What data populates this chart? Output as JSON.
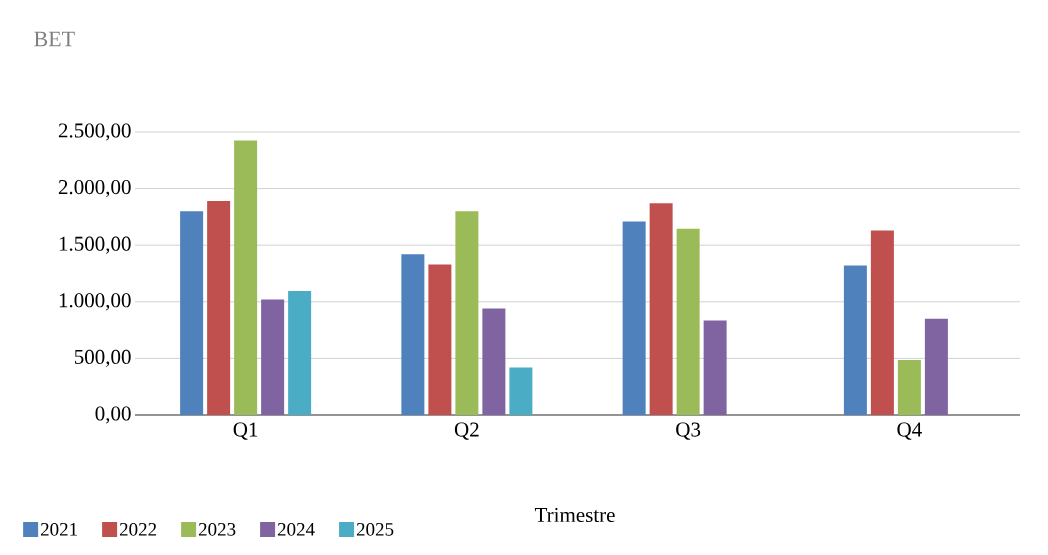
{
  "chart_data": {
    "type": "bar",
    "title": "BET",
    "xlabel": "Trimestre",
    "categories": [
      "Q1",
      "Q2",
      "Q3",
      "Q4"
    ],
    "series": [
      {
        "name": "2021",
        "color": "#4f81bd",
        "values": [
          1800,
          1420,
          1710,
          1320
        ]
      },
      {
        "name": "2022",
        "color": "#c0504d",
        "values": [
          1890,
          1330,
          1870,
          1630
        ]
      },
      {
        "name": "2023",
        "color": "#9bbb59",
        "values": [
          2425,
          1800,
          1645,
          485
        ]
      },
      {
        "name": "2024",
        "color": "#8064a2",
        "values": [
          1020,
          940,
          835,
          850
        ]
      },
      {
        "name": "2025",
        "color": "#4bacc6",
        "values": [
          1095,
          420,
          null,
          null
        ]
      }
    ],
    "ylim": [
      0,
      2500
    ],
    "yticks": [
      {
        "value": 0,
        "label": "0,00"
      },
      {
        "value": 500,
        "label": "500,00"
      },
      {
        "value": 1000,
        "label": "1.000,00"
      },
      {
        "value": 1500,
        "label": "1.500,00"
      },
      {
        "value": 2000,
        "label": "2.000,00"
      },
      {
        "value": 2500,
        "label": "2.500,00"
      }
    ],
    "grid": "y",
    "legend": "bottom"
  }
}
